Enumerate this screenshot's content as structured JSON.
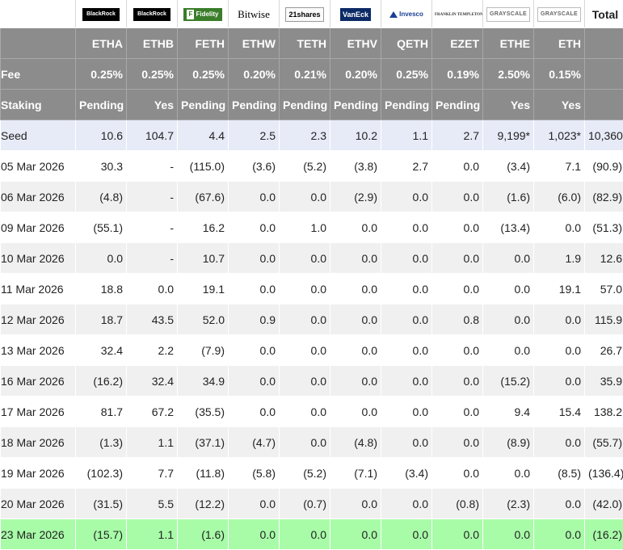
{
  "issuers": [
    {
      "logo_text": "BlackRock",
      "logo_icon": "blackrock-logo",
      "ticker": "ETHA",
      "fee": "0.25%",
      "staking": "Pending",
      "seed": "10.6"
    },
    {
      "logo_text": "BlackRock",
      "logo_icon": "blackrock-logo",
      "ticker": "ETHB",
      "fee": "0.25%",
      "staking": "Yes",
      "seed": "104.7"
    },
    {
      "logo_text": "Fidelity",
      "logo_icon": "fidelity-logo",
      "ticker": "FETH",
      "fee": "0.25%",
      "staking": "Pending",
      "seed": "4.4"
    },
    {
      "logo_text": "Bitwise",
      "logo_icon": "bitwise-logo",
      "ticker": "ETHW",
      "fee": "0.20%",
      "staking": "Pending",
      "seed": "2.5"
    },
    {
      "logo_text": "21shares",
      "logo_icon": "21shares-logo",
      "ticker": "TETH",
      "fee": "0.21%",
      "staking": "Pending",
      "seed": "2.3"
    },
    {
      "logo_text": "VanEck",
      "logo_icon": "vaneck-logo",
      "ticker": "ETHV",
      "fee": "0.20%",
      "staking": "Pending",
      "seed": "10.2"
    },
    {
      "logo_text": "Invesco",
      "logo_icon": "invesco-logo",
      "ticker": "QETH",
      "fee": "0.25%",
      "staking": "Pending",
      "seed": "1.1"
    },
    {
      "logo_text": "FRANKLIN TEMPLETON",
      "logo_icon": "franklin-templeton-logo",
      "ticker": "EZET",
      "fee": "0.19%",
      "staking": "Pending",
      "seed": "2.7"
    },
    {
      "logo_text": "GRAYSCALE",
      "logo_icon": "grayscale-logo",
      "ticker": "ETHE",
      "fee": "2.50%",
      "staking": "Yes",
      "seed": "9,199*"
    },
    {
      "logo_text": "GRAYSCALE",
      "logo_icon": "grayscale-logo",
      "ticker": "ETH",
      "fee": "0.15%",
      "staking": "Yes",
      "seed": "1,023*"
    }
  ],
  "labels": {
    "total": "Total",
    "fee": "Fee",
    "staking": "Staking",
    "seed": "Seed",
    "seed_total": "10,360"
  },
  "rows": [
    {
      "date": "05 Mar 2026",
      "values": [
        "30.3",
        "-",
        "(115.0)",
        "(3.6)",
        "(5.2)",
        "(3.8)",
        "2.7",
        "0.0",
        "(3.4)",
        "7.1"
      ],
      "total": "(90.9)"
    },
    {
      "date": "06 Mar 2026",
      "values": [
        "(4.8)",
        "-",
        "(67.6)",
        "0.0",
        "0.0",
        "(2.9)",
        "0.0",
        "0.0",
        "(1.6)",
        "(6.0)"
      ],
      "total": "(82.9)"
    },
    {
      "date": "09 Mar 2026",
      "values": [
        "(55.1)",
        "-",
        "16.2",
        "0.0",
        "1.0",
        "0.0",
        "0.0",
        "0.0",
        "(13.4)",
        "0.0"
      ],
      "total": "(51.3)"
    },
    {
      "date": "10 Mar 2026",
      "values": [
        "0.0",
        "-",
        "10.7",
        "0.0",
        "0.0",
        "0.0",
        "0.0",
        "0.0",
        "0.0",
        "1.9"
      ],
      "total": "12.6"
    },
    {
      "date": "11 Mar 2026",
      "values": [
        "18.8",
        "0.0",
        "19.1",
        "0.0",
        "0.0",
        "0.0",
        "0.0",
        "0.0",
        "0.0",
        "19.1"
      ],
      "total": "57.0"
    },
    {
      "date": "12 Mar 2026",
      "values": [
        "18.7",
        "43.5",
        "52.0",
        "0.9",
        "0.0",
        "0.0",
        "0.0",
        "0.8",
        "0.0",
        "0.0"
      ],
      "total": "115.9"
    },
    {
      "date": "13 Mar 2026",
      "values": [
        "32.4",
        "2.2",
        "(7.9)",
        "0.0",
        "0.0",
        "0.0",
        "0.0",
        "0.0",
        "0.0",
        "0.0"
      ],
      "total": "26.7"
    },
    {
      "date": "16 Mar 2026",
      "values": [
        "(16.2)",
        "32.4",
        "34.9",
        "0.0",
        "0.0",
        "0.0",
        "0.0",
        "0.0",
        "(15.2)",
        "0.0"
      ],
      "total": "35.9"
    },
    {
      "date": "17 Mar 2026",
      "values": [
        "81.7",
        "67.2",
        "(35.5)",
        "0.0",
        "0.0",
        "0.0",
        "0.0",
        "0.0",
        "9.4",
        "15.4"
      ],
      "total": "138.2"
    },
    {
      "date": "18 Mar 2026",
      "values": [
        "(1.3)",
        "1.1",
        "(37.1)",
        "(4.7)",
        "0.0",
        "(4.8)",
        "0.0",
        "0.0",
        "(8.9)",
        "0.0"
      ],
      "total": "(55.7)"
    },
    {
      "date": "19 Mar 2026",
      "values": [
        "(102.3)",
        "7.7",
        "(11.8)",
        "(5.8)",
        "(5.2)",
        "(7.1)",
        "(3.4)",
        "0.0",
        "0.0",
        "(8.5)"
      ],
      "total": "(136.4)"
    },
    {
      "date": "20 Mar 2026",
      "values": [
        "(31.5)",
        "5.5",
        "(12.2)",
        "0.0",
        "(0.7)",
        "0.0",
        "0.0",
        "(0.8)",
        "(2.3)",
        "0.0"
      ],
      "total": "(42.0)"
    },
    {
      "date": "23 Mar 2026",
      "values": [
        "(15.7)",
        "1.1",
        "(1.6)",
        "0.0",
        "0.0",
        "0.0",
        "0.0",
        "0.0",
        "0.0",
        "0.0"
      ],
      "total": "(16.2)"
    }
  ],
  "colors": {
    "header_bg": "#8c8c8c",
    "seed_bg": "#e7ebf7",
    "alt_row_bg": "#f0f0f0",
    "latest_row_bg": "#a8fca8",
    "negative_text": "#dd0000"
  }
}
